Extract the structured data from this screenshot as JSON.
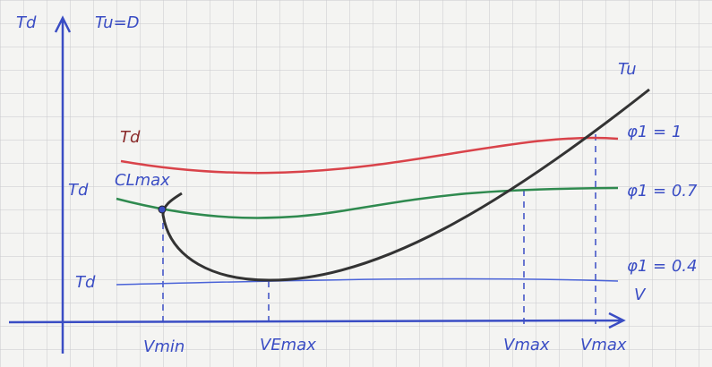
{
  "axes": {
    "y_label": "Td",
    "y_label_2": "Tu=D",
    "x_label": "V"
  },
  "curves": {
    "required": {
      "label": "Tu"
    },
    "available": [
      {
        "label": "Td",
        "parameter": "φ1 = 1"
      },
      {
        "label": "Td",
        "parameter": "φ1 = 0.7"
      },
      {
        "label": "Td",
        "parameter": "φ1 = 0.4"
      }
    ]
  },
  "annotations": {
    "clmax": "CLmax"
  },
  "x_markers": [
    "Vmin",
    "VEmax",
    "Vmax",
    "Vmax"
  ]
}
